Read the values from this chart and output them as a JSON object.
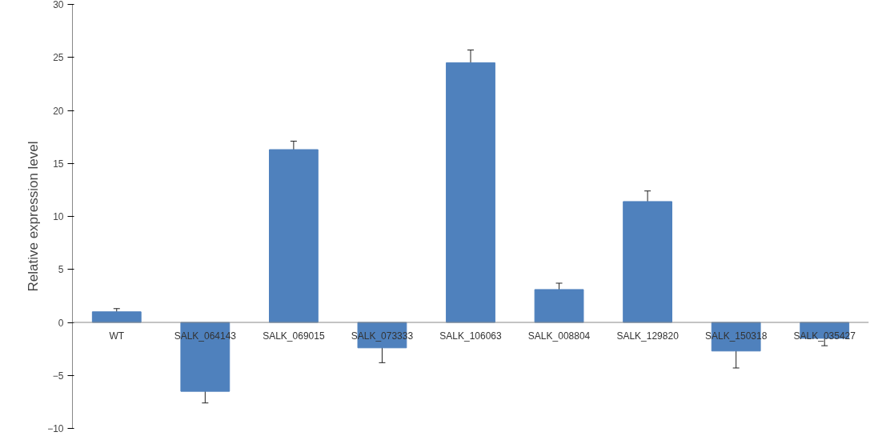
{
  "chart_data": {
    "type": "bar",
    "ylabel": "Relative expression level",
    "categories": [
      "WT",
      "SALK_064143",
      "SALK_069015",
      "SALK_073333",
      "SALK_106063",
      "SALK_008804",
      "SALK_129820",
      "SALK_150318",
      "SALK_035427"
    ],
    "series": [
      {
        "color": "#4f81bd",
        "values": [
          1.0,
          -6.5,
          16.3,
          -2.4,
          24.5,
          3.1,
          11.4,
          -2.7,
          -1.5
        ],
        "errors": [
          0.3,
          1.1,
          0.8,
          1.4,
          1.2,
          0.6,
          1.0,
          1.6,
          0.7
        ]
      }
    ],
    "ylim": [
      -10,
      30
    ],
    "yticks": [
      -10,
      -5,
      0,
      5,
      10,
      15,
      20,
      25,
      30
    ],
    "grid": false
  }
}
